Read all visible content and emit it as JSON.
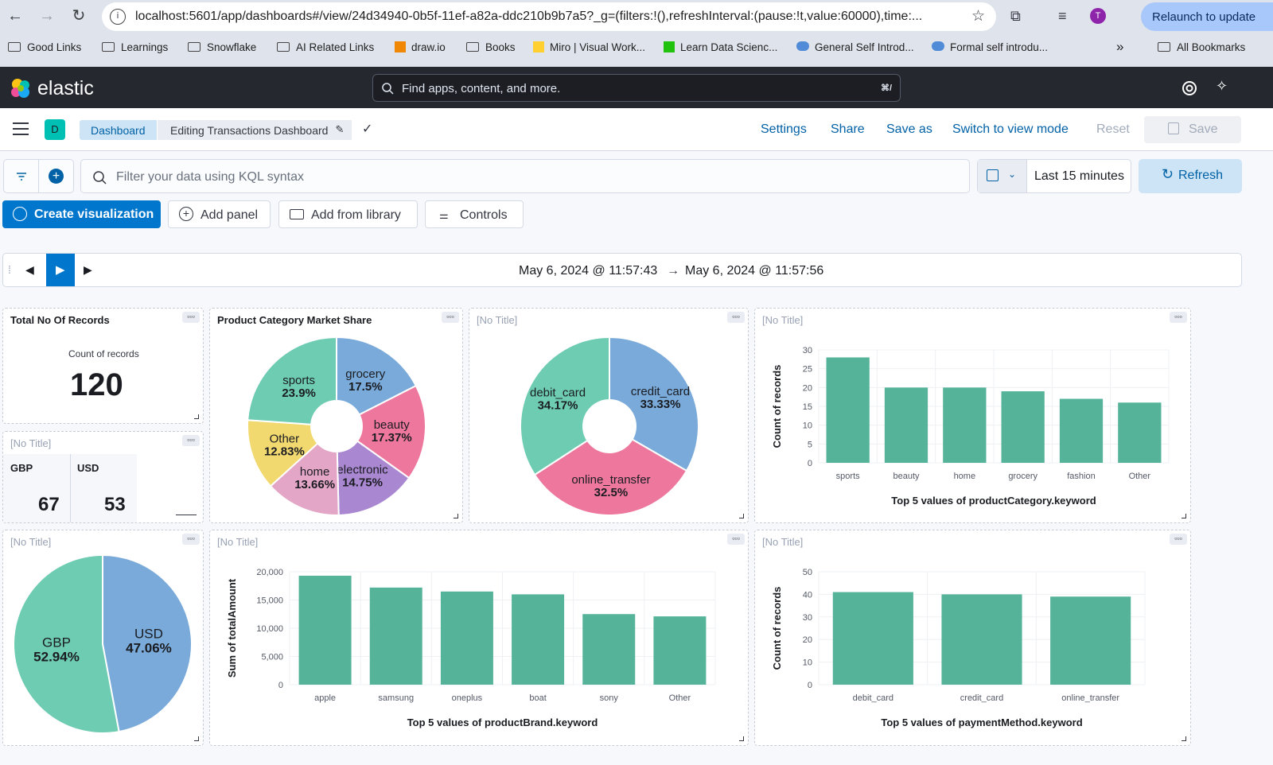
{
  "browser": {
    "url": "localhost:5601/app/dashboards#/view/24d34940-0b5f-11ef-a82a-ddc210b9b7a5?_g=(filters:!(),refreshInterval:(pause:!t,value:60000),time:...",
    "relaunch_label": "Relaunch to update",
    "profile_initial": "T",
    "bookmarks": [
      "Good Links",
      "Learnings",
      "Snowflake",
      "AI Related Links",
      "draw.io",
      "Books",
      "Miro | Visual Work...",
      "Learn Data Scienc...",
      "General Self Introd...",
      "Formal self introdu..."
    ],
    "more_bookmarks": "»",
    "all_bookmarks": "All Bookmarks"
  },
  "header": {
    "logo_text": "elastic",
    "search_placeholder": "Find apps, content, and more.",
    "search_shortcut": "⌘/"
  },
  "appbar": {
    "space_initial": "D",
    "breadcrumb_dashboard": "Dashboard",
    "breadcrumb_current": "Editing Transactions Dashboard",
    "links": [
      "Settings",
      "Share",
      "Save as",
      "Switch to view mode",
      "Reset"
    ],
    "save_label": "Save"
  },
  "query": {
    "kql_placeholder": "Filter your data using KQL syntax",
    "time_range": "Last 15 minutes",
    "refresh_label": "Refresh"
  },
  "toolbar": {
    "create_viz": "Create visualization",
    "add_panel": "Add panel",
    "add_library": "Add from library",
    "controls": "Controls"
  },
  "timeslider": {
    "start": "May 6, 2024 @ 11:57:43",
    "arrow": "→",
    "end": "May 6, 2024 @ 11:57:56"
  },
  "colors": {
    "green": "#54b399",
    "blue": "#6092c0",
    "pink": "#d36086",
    "purple": "#9170b8",
    "lightpink": "#ca8eae",
    "yellow": "#d6bf57",
    "accent": "#0077cc"
  },
  "panels": {
    "no_title": "[No Title]",
    "total_records": {
      "title": "Total No Of Records",
      "label": "Count of records",
      "value": "120"
    },
    "currency_metric": {
      "items": [
        {
          "label": "GBP",
          "value": "67"
        },
        {
          "label": "USD",
          "value": "53"
        }
      ]
    }
  },
  "chart_data": [
    {
      "id": "category-share",
      "type": "pie",
      "donut": true,
      "title": "Product Category Market Share",
      "slices": [
        {
          "label": "grocery",
          "pct": "17.5%",
          "value": 17.5,
          "color": "#79aad9"
        },
        {
          "label": "beauty",
          "pct": "17.37%",
          "value": 17.37,
          "color": "#ee789d"
        },
        {
          "label": "electronic",
          "pct": "14.75%",
          "value": 14.75,
          "color": "#a987d1"
        },
        {
          "label": "home",
          "pct": "13.66%",
          "value": 13.66,
          "color": "#e4a6c7"
        },
        {
          "label": "Other",
          "pct": "12.83%",
          "value": 12.83,
          "color": "#f1d86f"
        },
        {
          "label": "sports",
          "pct": "23.9%",
          "value": 23.9,
          "color": "#6dccb1"
        }
      ]
    },
    {
      "id": "payment-share",
      "type": "pie",
      "donut": true,
      "slices": [
        {
          "label": "credit_card",
          "pct": "33.33%",
          "value": 33.33,
          "color": "#79aad9"
        },
        {
          "label": "online_transfer",
          "pct": "32.5%",
          "value": 32.5,
          "color": "#ee789d"
        },
        {
          "label": "debit_card",
          "pct": "34.17%",
          "value": 34.17,
          "color": "#6dccb1"
        }
      ]
    },
    {
      "id": "category-bars",
      "type": "bar",
      "xlabel": "Top 5 values of productCategory.keyword",
      "ylabel": "Count of records",
      "ylim": [
        0,
        30
      ],
      "yticks": [
        0,
        5,
        10,
        15,
        20,
        25,
        30
      ],
      "categories": [
        "sports",
        "beauty",
        "home",
        "grocery",
        "fashion",
        "Other"
      ],
      "values": [
        28,
        20,
        20,
        19,
        17,
        16
      ]
    },
    {
      "id": "currency-share",
      "type": "pie",
      "donut": false,
      "slices": [
        {
          "label": "USD",
          "pct": "47.06%",
          "value": 47.06,
          "color": "#79aad9"
        },
        {
          "label": "GBP",
          "pct": "52.94%",
          "value": 52.94,
          "color": "#6dccb1"
        }
      ]
    },
    {
      "id": "brand-bars",
      "type": "bar",
      "xlabel": "Top 5 values of productBrand.keyword",
      "ylabel": "Sum of totalAmount",
      "ylim": [
        0,
        20000
      ],
      "yticks": [
        "0",
        "5,000",
        "10,000",
        "15,000",
        "20,000"
      ],
      "categories": [
        "apple",
        "samsung",
        "oneplus",
        "boat",
        "sony",
        "Other"
      ],
      "values": [
        19300,
        17200,
        16500,
        16000,
        12500,
        12100
      ]
    },
    {
      "id": "payment-bars",
      "type": "bar",
      "xlabel": "Top 5 values of paymentMethod.keyword",
      "ylabel": "Count of records",
      "ylim": [
        0,
        50
      ],
      "yticks": [
        0,
        10,
        20,
        30,
        40,
        50
      ],
      "categories": [
        "debit_card",
        "credit_card",
        "online_transfer"
      ],
      "values": [
        41,
        40,
        39
      ]
    }
  ]
}
